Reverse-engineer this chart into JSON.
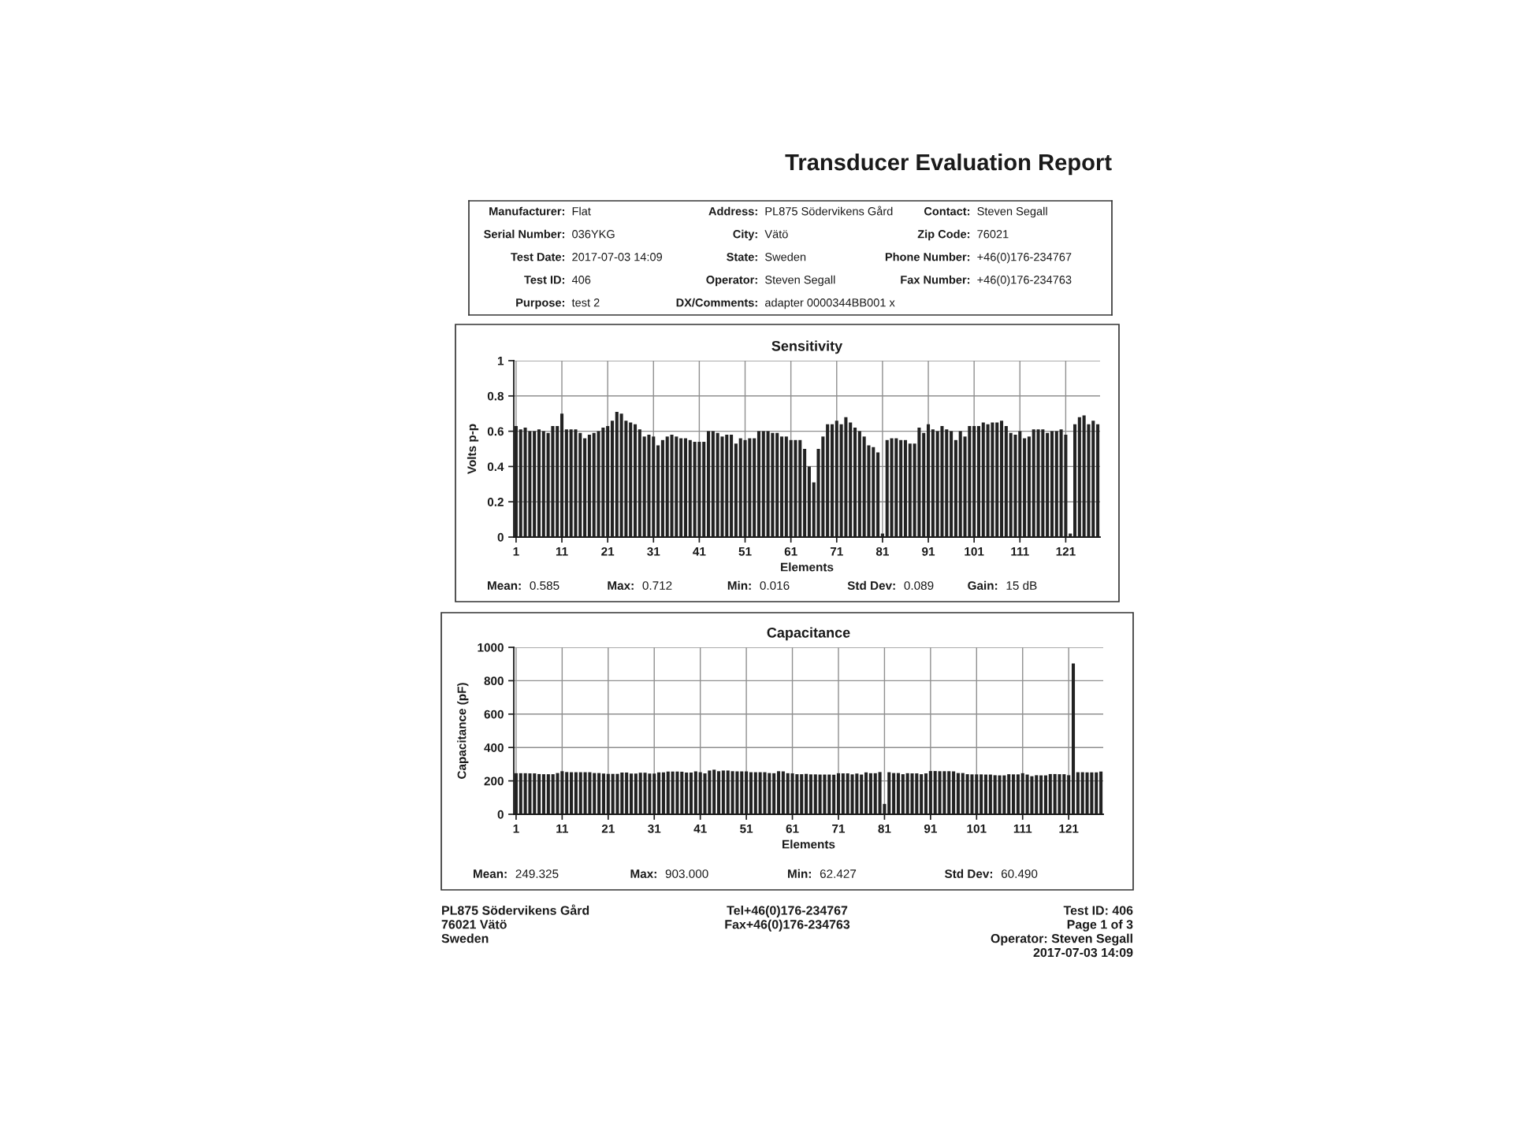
{
  "chart_data": [
    {
      "type": "other",
      "title": "Transducer Evaluation Report",
      "annotations": [
        "Manufacturer: Flat",
        "Serial Number: 036YKG",
        "Test Date: 2017-07-03 14:09",
        "Test ID: 406",
        "Purpose: test 2",
        "Address: PL875 Södervikens Gård",
        "City: Vätö",
        "State: Sweden",
        "Operator: Steven Segall",
        "DX/Comments: adapter 0000344BB001 x",
        "Contact: Steven Segall",
        "Zip Code: 76021",
        "Phone Number: +46(0)176-234767",
        "Fax Number: +46(0)176-234763"
      ]
    },
    {
      "type": "bar",
      "title": "Sensitivity",
      "xlabel": "Elements",
      "ylabel": "Volts p-p",
      "categories": [
        "1",
        null,
        null,
        null,
        null,
        null,
        null,
        null,
        null,
        null,
        "11",
        null,
        null,
        null,
        null,
        null,
        null,
        null,
        null,
        null,
        "21",
        null,
        null,
        null,
        null,
        null,
        null,
        null,
        null,
        null,
        "31",
        null,
        null,
        null,
        null,
        null,
        null,
        null,
        null,
        null,
        "41",
        null,
        null,
        null,
        null,
        null,
        null,
        null,
        null,
        null,
        "51",
        null,
        null,
        null,
        null,
        null,
        null,
        null,
        null,
        null,
        "61",
        null,
        null,
        null,
        null,
        null,
        null,
        null,
        null,
        null,
        "71",
        null,
        null,
        null,
        null,
        null,
        null,
        null,
        null,
        null,
        "81",
        null,
        null,
        null,
        null,
        null,
        null,
        null,
        null,
        null,
        "91",
        null,
        null,
        null,
        null,
        null,
        null,
        null,
        null,
        null,
        "101",
        null,
        null,
        null,
        null,
        null,
        null,
        null,
        null,
        null,
        "111",
        null,
        null,
        null,
        null,
        null,
        null,
        null,
        null,
        null,
        "121",
        null,
        null,
        null,
        null,
        null,
        null,
        null
      ],
      "values": [
        0.63,
        0.61,
        0.62,
        0.6,
        0.6,
        0.61,
        0.6,
        0.59,
        0.63,
        0.63,
        0.7,
        0.61,
        0.61,
        0.61,
        0.59,
        0.56,
        0.58,
        0.59,
        0.6,
        0.62,
        0.63,
        0.66,
        0.71,
        0.7,
        0.66,
        0.65,
        0.64,
        0.61,
        0.57,
        0.58,
        0.57,
        0.52,
        0.55,
        0.57,
        0.58,
        0.57,
        0.56,
        0.56,
        0.55,
        0.54,
        0.54,
        0.54,
        0.6,
        0.6,
        0.59,
        0.57,
        0.58,
        0.58,
        0.53,
        0.56,
        0.55,
        0.56,
        0.56,
        0.6,
        0.6,
        0.6,
        0.59,
        0.59,
        0.57,
        0.57,
        0.55,
        0.55,
        0.55,
        0.5,
        0.4,
        0.31,
        0.5,
        0.57,
        0.64,
        0.64,
        0.66,
        0.64,
        0.68,
        0.65,
        0.62,
        0.6,
        0.57,
        0.52,
        0.51,
        0.48,
        0.02,
        0.55,
        0.56,
        0.56,
        0.55,
        0.55,
        0.53,
        0.53,
        0.62,
        0.59,
        0.64,
        0.61,
        0.6,
        0.63,
        0.61,
        0.6,
        0.55,
        0.6,
        0.57,
        0.63,
        0.63,
        0.63,
        0.65,
        0.64,
        0.65,
        0.65,
        0.66,
        0.63,
        0.59,
        0.58,
        0.6,
        0.56,
        0.57,
        0.61,
        0.61,
        0.61,
        0.59,
        0.6,
        0.6,
        0.61,
        0.58,
        0.02,
        0.64,
        0.68,
        0.69,
        0.64,
        0.66,
        0.64
      ],
      "color": "#222222",
      "ylim": [
        0,
        1
      ],
      "yticks": [
        0,
        0.2,
        0.4,
        0.6,
        0.8,
        1
      ],
      "grid": true,
      "annotations": [
        "Mean: 0.585",
        "Max: 0.712",
        "Min: 0.016",
        "Std Dev: 0.089",
        "Gain: 15 dB"
      ]
    },
    {
      "type": "bar",
      "title": "Capacitance",
      "xlabel": "Elements",
      "ylabel": "Capacitance (pF)",
      "categories": [
        "1",
        null,
        null,
        null,
        null,
        null,
        null,
        null,
        null,
        null,
        "11",
        null,
        null,
        null,
        null,
        null,
        null,
        null,
        null,
        null,
        "21",
        null,
        null,
        null,
        null,
        null,
        null,
        null,
        null,
        null,
        "31",
        null,
        null,
        null,
        null,
        null,
        null,
        null,
        null,
        null,
        "41",
        null,
        null,
        null,
        null,
        null,
        null,
        null,
        null,
        null,
        "51",
        null,
        null,
        null,
        null,
        null,
        null,
        null,
        null,
        null,
        "61",
        null,
        null,
        null,
        null,
        null,
        null,
        null,
        null,
        null,
        "71",
        null,
        null,
        null,
        null,
        null,
        null,
        null,
        null,
        null,
        "81",
        null,
        null,
        null,
        null,
        null,
        null,
        null,
        null,
        null,
        "91",
        null,
        null,
        null,
        null,
        null,
        null,
        null,
        null,
        null,
        "101",
        null,
        null,
        null,
        null,
        null,
        null,
        null,
        null,
        null,
        "111",
        null,
        null,
        null,
        null,
        null,
        null,
        null,
        null,
        null,
        "121",
        null,
        null,
        null,
        null,
        null,
        null,
        null
      ],
      "values": [
        246,
        246,
        246,
        245,
        245,
        241,
        240,
        240,
        240,
        247,
        258,
        253,
        252,
        252,
        252,
        252,
        252,
        247,
        247,
        244,
        242,
        242,
        242,
        250,
        250,
        244,
        244,
        249,
        249,
        244,
        244,
        251,
        251,
        256,
        256,
        256,
        255,
        250,
        250,
        257,
        252,
        245,
        262,
        267,
        258,
        262,
        262,
        258,
        257,
        257,
        257,
        252,
        252,
        252,
        252,
        247,
        246,
        258,
        257,
        246,
        245,
        240,
        240,
        242,
        239,
        239,
        238,
        238,
        238,
        237,
        246,
        245,
        245,
        239,
        244,
        238,
        251,
        246,
        246,
        253,
        62,
        252,
        247,
        247,
        240,
        246,
        245,
        245,
        240,
        245,
        259,
        259,
        258,
        258,
        258,
        257,
        247,
        247,
        240,
        239,
        239,
        239,
        238,
        238,
        234,
        233,
        233,
        240,
        239,
        239,
        246,
        238,
        228,
        234,
        233,
        233,
        241,
        241,
        240,
        240,
        234,
        903,
        252,
        252,
        251,
        251,
        251,
        256
      ],
      "color": "#222222",
      "ylim": [
        0,
        1000
      ],
      "yticks": [
        0,
        200,
        400,
        600,
        800,
        1000
      ],
      "grid": true,
      "annotations": [
        "Mean: 249.325",
        "Max: 903.000",
        "Min: 62.427",
        "Std Dev: 60.490"
      ]
    },
    {
      "type": "other",
      "annotations": [
        "PL875 Södervikens Gård\n76021 Vätö\nSweden",
        "Tel+46(0)176-234767\nFax+46(0)176-234763",
        "Test ID: 406\nPage 1 of 3\nOperator: Steven Segall\n2017-07-03 14:09"
      ]
    }
  ]
}
